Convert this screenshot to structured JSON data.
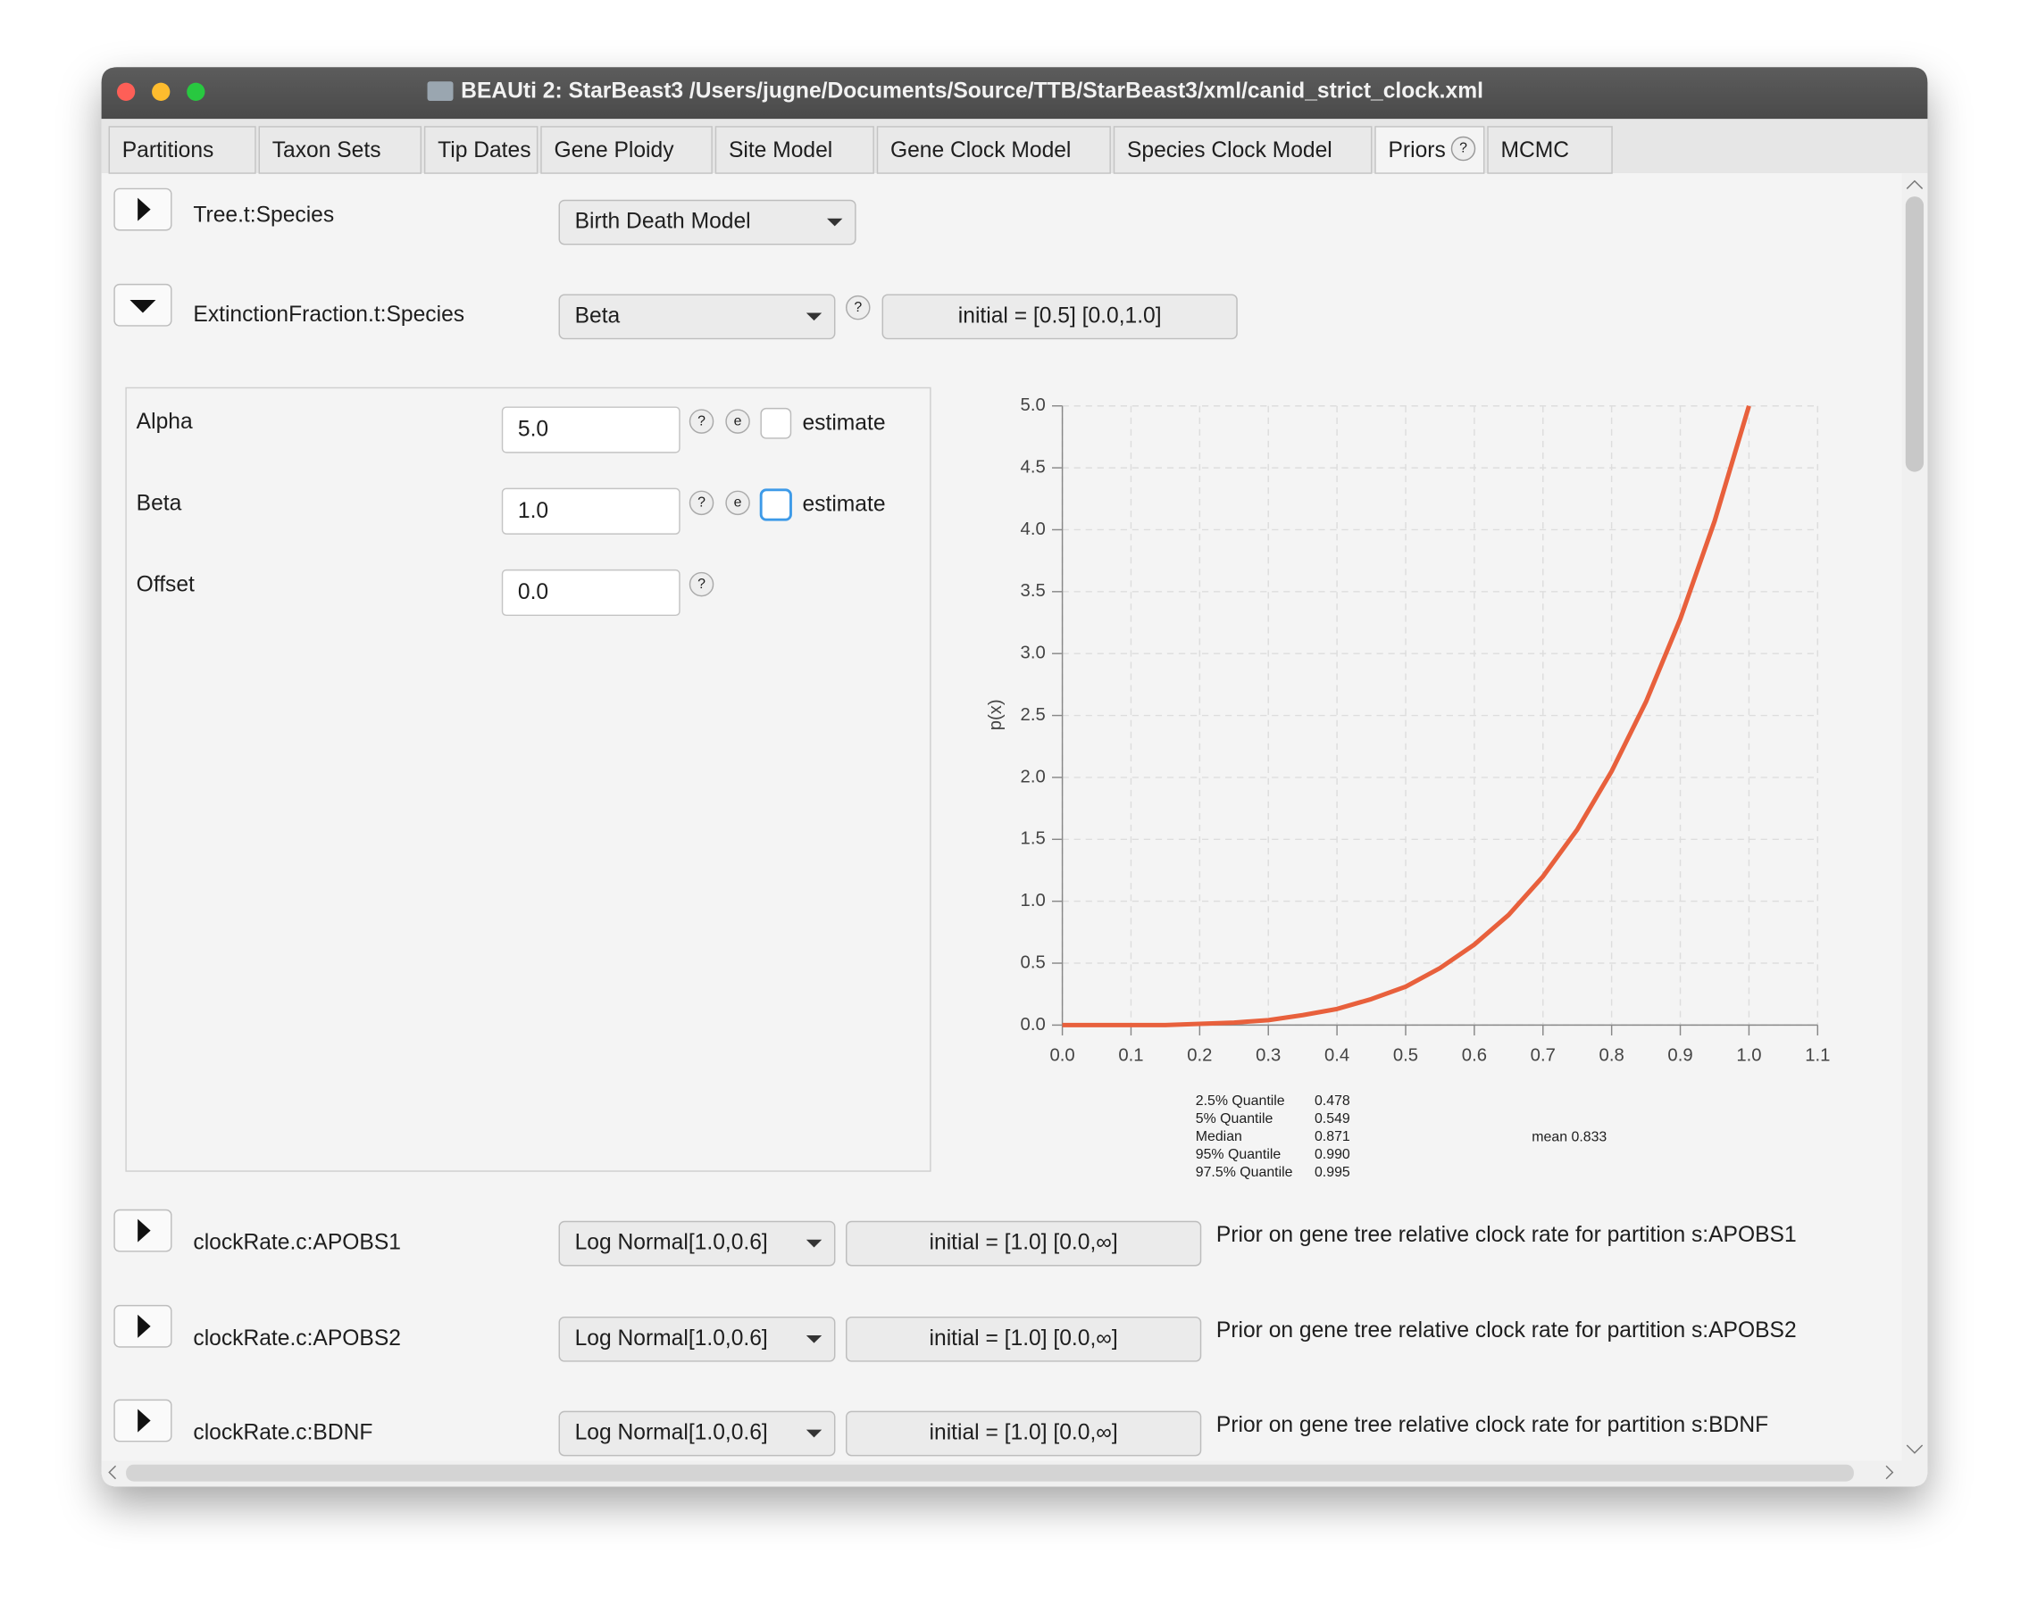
{
  "window": {
    "title": "BEAUti 2: StarBeast3 /Users/jugne/Documents/Source/TTB/StarBeast3/xml/canid_strict_clock.xml"
  },
  "tabs": [
    "Partitions",
    "Taxon Sets",
    "Tip Dates",
    "Gene Ploidy",
    "Site Model",
    "Gene Clock Model",
    "Species Clock Model",
    "Priors",
    "MCMC"
  ],
  "icons": {
    "help": "?",
    "edit": "e"
  },
  "priors": [
    {
      "label": "Tree.t:Species",
      "distribution": "Birth Death Model"
    },
    {
      "label": "ExtinctionFraction.t:Species",
      "distribution": "Beta",
      "initial": "initial = [0.5] [0.0,1.0]"
    },
    {
      "label": "clockRate.c:APOBS1",
      "distribution": "Log Normal[1.0,0.6]",
      "initial": "initial = [1.0] [0.0,∞]",
      "description": "Prior on gene tree relative clock rate for partition s:APOBS1"
    },
    {
      "label": "clockRate.c:APOBS2",
      "distribution": "Log Normal[1.0,0.6]",
      "initial": "initial = [1.0] [0.0,∞]",
      "description": "Prior on gene tree relative clock rate for partition s:APOBS2"
    },
    {
      "label": "clockRate.c:BDNF",
      "distribution": "Log Normal[1.0,0.6]",
      "initial": "initial = [1.0] [0.0,∞]",
      "description": "Prior on gene tree relative clock rate for partition s:BDNF"
    }
  ],
  "parameters": [
    {
      "label": "Alpha",
      "value": "5.0",
      "estimate": "estimate"
    },
    {
      "label": "Beta",
      "value": "1.0",
      "estimate": "estimate"
    },
    {
      "label": "Offset",
      "value": "0.0"
    }
  ],
  "chart_data": {
    "type": "line",
    "ylabel": "p(x)",
    "x": [
      0,
      0.05,
      0.1,
      0.15,
      0.2,
      0.25,
      0.3,
      0.35,
      0.4,
      0.45,
      0.5,
      0.55,
      0.6,
      0.65,
      0.7,
      0.75,
      0.8,
      0.85,
      0.9,
      0.95,
      1.0
    ],
    "values": [
      0,
      0,
      0,
      0,
      0.01,
      0.02,
      0.04,
      0.08,
      0.13,
      0.21,
      0.31,
      0.46,
      0.65,
      0.89,
      1.2,
      1.58,
      2.05,
      2.61,
      3.28,
      4.07,
      5.0
    ],
    "color": "#e8603c",
    "xlim": [
      0,
      1.1
    ],
    "ylim": [
      0,
      5
    ],
    "xticks": [
      {
        "value": 0,
        "label": "0.0"
      },
      {
        "value": 0.1,
        "label": "0.1"
      },
      {
        "value": 0.2,
        "label": "0.2"
      },
      {
        "value": 0.3,
        "label": "0.3"
      },
      {
        "value": 0.4,
        "label": "0.4"
      },
      {
        "value": 0.5,
        "label": "0.5"
      },
      {
        "value": 0.6,
        "label": "0.6"
      },
      {
        "value": 0.7,
        "label": "0.7"
      },
      {
        "value": 0.8,
        "label": "0.8"
      },
      {
        "value": 0.9,
        "label": "0.9"
      },
      {
        "value": 1,
        "label": "1.0"
      },
      {
        "value": 1.1,
        "label": "1.1"
      }
    ],
    "yticks": [
      {
        "value": 0,
        "label": "0.0"
      },
      {
        "value": 0.5,
        "label": "0.5"
      },
      {
        "value": 1,
        "label": "1.0"
      },
      {
        "value": 1.5,
        "label": "1.5"
      },
      {
        "value": 2,
        "label": "2.0"
      },
      {
        "value": 2.5,
        "label": "2.5"
      },
      {
        "value": 3,
        "label": "3.0"
      },
      {
        "value": 3.5,
        "label": "3.5"
      },
      {
        "value": 4,
        "label": "4.0"
      },
      {
        "value": 4.5,
        "label": "4.5"
      },
      {
        "value": 5,
        "label": "5.0"
      }
    ],
    "grid": true
  },
  "statistics": {
    "rows": [
      [
        "2.5% Quantile",
        "0.478"
      ],
      [
        "5% Quantile",
        "0.549"
      ],
      [
        "Median",
        "0.871"
      ],
      [
        "95% Quantile",
        "0.990"
      ],
      [
        "97.5% Quantile",
        "0.995"
      ]
    ],
    "mean": "mean 0.833"
  }
}
